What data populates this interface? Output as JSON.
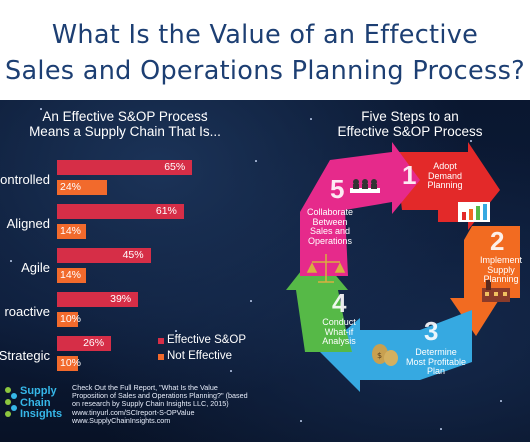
{
  "title": {
    "line1": "What Is the Value of an Effective",
    "line2": "Sales and Operations Planning Process?"
  },
  "left_panel": {
    "subtitle_line1": "An Effective S&OP Process",
    "subtitle_line2": "Means a Supply Chain That Is..."
  },
  "chart_data": {
    "type": "bar",
    "title": "An Effective S&OP Process Means a Supply Chain That Is...",
    "categories": [
      "Controlled",
      "Aligned",
      "Agile",
      "Proactive",
      "Strategic"
    ],
    "category_labels": [
      "ontrolled",
      "Aligned",
      "Agile",
      "roactive",
      "Strategic"
    ],
    "series": [
      {
        "name": "Effective S&OP",
        "values": [
          65,
          61,
          45,
          39,
          26
        ],
        "labels": [
          "65%",
          "61%",
          "45%",
          "39%",
          "26%"
        ],
        "color": "#d62e47"
      },
      {
        "name": "Not Effective",
        "values": [
          24,
          14,
          14,
          10,
          10
        ],
        "labels": [
          "24%",
          "14%",
          "14%",
          "10%",
          "10%"
        ],
        "color": "#f26a2c"
      }
    ],
    "orientation": "horizontal",
    "xlim": [
      0,
      100
    ],
    "grid": false,
    "legend_position": "bottom-right"
  },
  "right_panel": {
    "subtitle_line1": "Five Steps to an",
    "subtitle_line2": "Effective S&OP Process",
    "steps": [
      {
        "number": "1",
        "lines": [
          "Adopt",
          "Demand",
          "Planning"
        ],
        "color": "#e32929",
        "icon": "bar-chart-icon"
      },
      {
        "number": "2",
        "lines": [
          "Implement",
          "Supply",
          "Planning"
        ],
        "color": "#f26b21",
        "icon": "factory-icon"
      },
      {
        "number": "3",
        "lines": [
          "Determine",
          "Most Profitable",
          "Plan"
        ],
        "color": "#36a9e1",
        "icon": "money-bags-icon"
      },
      {
        "number": "4",
        "lines": [
          "Conduct",
          "What-if",
          "Analysis"
        ],
        "color": "#56b947",
        "icon": "scales-icon"
      },
      {
        "number": "5",
        "lines": [
          "Collaborate",
          "Between",
          "Sales and",
          "Operations"
        ],
        "color": "#e62a8b",
        "icon": "meeting-icon"
      }
    ]
  },
  "footer": {
    "logo_line1": "Supply",
    "logo_line2": "Chain",
    "logo_line3": "Insights",
    "lines": [
      "Check Out the Full Report, \"What Is the Value",
      "Proposition of Sales and Operations Planning?\" (based",
      "on research by Supply Chain Insights LLC, 2015)",
      "www.tinyurl.com/SCIreport-S-OPValue",
      "www.SupplyChainInsights.com"
    ]
  }
}
